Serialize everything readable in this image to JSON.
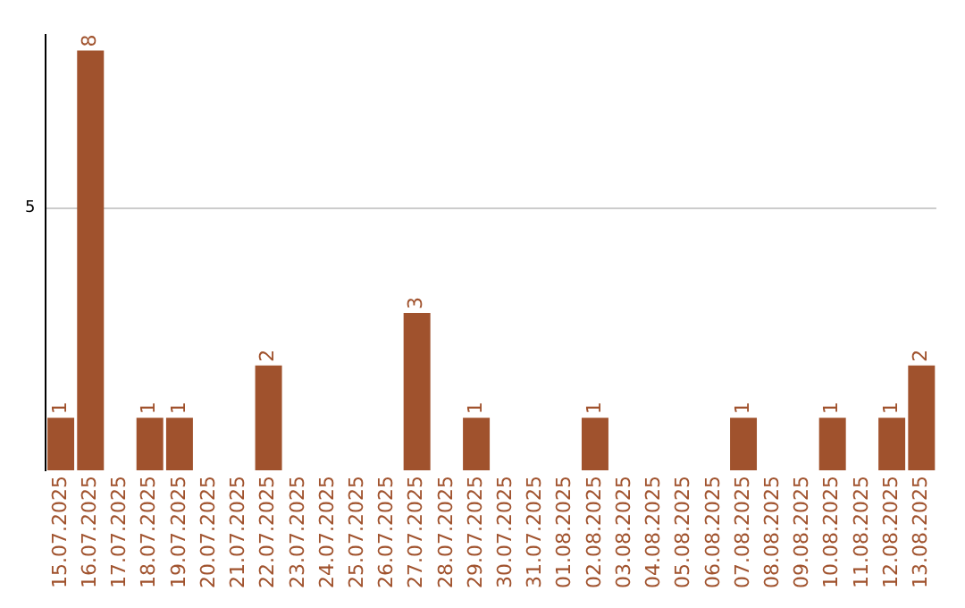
{
  "chart_data": {
    "type": "bar",
    "categories": [
      "15.07.2025",
      "16.07.2025",
      "17.07.2025",
      "18.07.2025",
      "19.07.2025",
      "20.07.2025",
      "21.07.2025",
      "22.07.2025",
      "23.07.2025",
      "24.07.2025",
      "25.07.2025",
      "26.07.2025",
      "27.07.2025",
      "28.07.2025",
      "29.07.2025",
      "30.07.2025",
      "31.07.2025",
      "01.08.2025",
      "02.08.2025",
      "03.08.2025",
      "04.08.2025",
      "05.08.2025",
      "06.08.2025",
      "07.08.2025",
      "08.08.2025",
      "09.08.2025",
      "10.08.2025",
      "11.08.2025",
      "12.08.2025",
      "13.08.2025"
    ],
    "values": [
      1,
      8,
      0,
      1,
      1,
      0,
      0,
      2,
      0,
      0,
      0,
      0,
      3,
      0,
      1,
      0,
      0,
      0,
      1,
      0,
      0,
      0,
      0,
      1,
      0,
      0,
      1,
      0,
      1,
      2
    ],
    "value_labels": [
      "1",
      "8",
      null,
      "1",
      "1",
      null,
      null,
      "2",
      null,
      null,
      null,
      null,
      "3",
      null,
      "1",
      null,
      null,
      null,
      "1",
      null,
      null,
      null,
      null,
      "1",
      null,
      null,
      "1",
      null,
      "1",
      "2"
    ],
    "color": "#a0522d",
    "ylim": [
      0,
      8.3
    ],
    "yticks": [
      5
    ],
    "grid": "y"
  }
}
